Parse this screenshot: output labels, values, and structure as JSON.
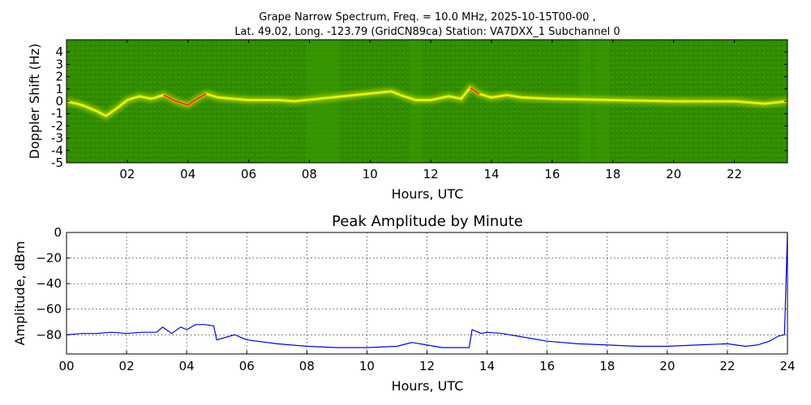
{
  "figure": {
    "title_line1": "Grape Narrow Spectrum, Freq. = 10.0 MHz, 2025-10-15T00-00 ,",
    "title_line2": "Lat.  49.02, Long. -123.79 (GridCN89ca) Station: VA7DXX_1 Subchannel 0"
  },
  "chart_data": [
    {
      "type": "heatmap",
      "title": "",
      "xlabel": "Hours, UTC",
      "ylabel": "Doppler Shift (Hz)",
      "xlim": [
        0,
        23.75
      ],
      "ylim": [
        -5,
        5
      ],
      "x_ticks": [
        "02",
        "04",
        "06",
        "08",
        "10",
        "12",
        "14",
        "16",
        "18",
        "20",
        "22"
      ],
      "x_tick_values": [
        2,
        4,
        6,
        8,
        10,
        12,
        14,
        16,
        18,
        20,
        22
      ],
      "y_ticks": [
        "4",
        "3",
        "2",
        "1",
        "0",
        "-1",
        "-2",
        "-3",
        "-4",
        "-5"
      ],
      "y_tick_values": [
        4,
        3,
        2,
        1,
        0,
        -1,
        -2,
        -3,
        -4,
        -5
      ],
      "colors": {
        "background": "#2e8b00",
        "low": "#3a9a00",
        "mid": "#e8f000",
        "high": "#ff2a00"
      },
      "trace": {
        "x": [
          0,
          0.5,
          1.0,
          1.3,
          1.7,
          2.0,
          2.4,
          2.8,
          3.2,
          3.6,
          4.0,
          4.3,
          4.6,
          5.0,
          5.5,
          6.0,
          7.0,
          7.5,
          10.7,
          11.0,
          11.5,
          12.0,
          12.6,
          13.0,
          13.3,
          13.6,
          14.0,
          14.5,
          15.0,
          16.0,
          18.0,
          20.0,
          22.0,
          23.0,
          23.75
        ],
        "y": [
          0,
          -0.3,
          -0.8,
          -1.2,
          -0.5,
          0.1,
          0.4,
          0.2,
          0.5,
          0.0,
          -0.3,
          0.2,
          0.6,
          0.3,
          0.2,
          0.1,
          0.1,
          0.0,
          0.8,
          0.5,
          0.1,
          0.1,
          0.4,
          0.2,
          1.1,
          0.6,
          0.3,
          0.5,
          0.3,
          0.2,
          0.1,
          0.0,
          0.0,
          -0.2,
          0.0
        ]
      },
      "noise_bands_hours": [
        [
          7.9,
          9.0
        ],
        [
          11.3,
          11.7
        ],
        [
          16.9,
          17.3
        ],
        [
          17.4,
          17.9
        ]
      ]
    },
    {
      "type": "line",
      "title": "Peak Amplitude by Minute",
      "xlabel": "Hours, UTC",
      "ylabel": "Amplitude, dBm",
      "xlim": [
        0,
        24
      ],
      "ylim": [
        -95,
        0
      ],
      "grid": true,
      "x_ticks": [
        "00",
        "02",
        "04",
        "06",
        "08",
        "10",
        "12",
        "14",
        "16",
        "18",
        "20",
        "22",
        "24"
      ],
      "x_tick_values": [
        0,
        2,
        4,
        6,
        8,
        10,
        12,
        14,
        16,
        18,
        20,
        22,
        24
      ],
      "y_ticks": [
        "0",
        "−20",
        "−40",
        "−60",
        "−80"
      ],
      "y_tick_values": [
        0,
        -20,
        -40,
        -60,
        -80
      ],
      "line_color": "#0000ff",
      "series": [
        {
          "x": [
            0,
            0.5,
            1.0,
            1.5,
            2.0,
            2.5,
            3.0,
            3.2,
            3.5,
            3.8,
            4.0,
            4.3,
            4.6,
            4.9,
            5.0,
            5.3,
            5.6,
            6.0,
            7.0,
            8.0,
            9.0,
            10.0,
            11.0,
            11.5,
            12.0,
            12.5,
            13.0,
            13.4,
            13.5,
            13.8,
            14.0,
            14.5,
            15.0,
            16.0,
            17.0,
            18.0,
            19.0,
            20.0,
            21.0,
            22.0,
            22.6,
            23.0,
            23.4,
            23.7,
            23.9,
            24.0
          ],
          "y": [
            -80,
            -79,
            -79,
            -78,
            -79,
            -78,
            -78,
            -74,
            -79,
            -74,
            -76,
            -72,
            -72,
            -73,
            -84,
            -82,
            -80,
            -84,
            -87,
            -89,
            -90,
            -90,
            -89,
            -86,
            -88,
            -90,
            -90,
            -90,
            -76,
            -79,
            -78,
            -79,
            -81,
            -85,
            -87,
            -88,
            -89,
            -89,
            -88,
            -87,
            -89,
            -88,
            -85,
            -81,
            -80,
            0
          ]
        }
      ]
    }
  ]
}
